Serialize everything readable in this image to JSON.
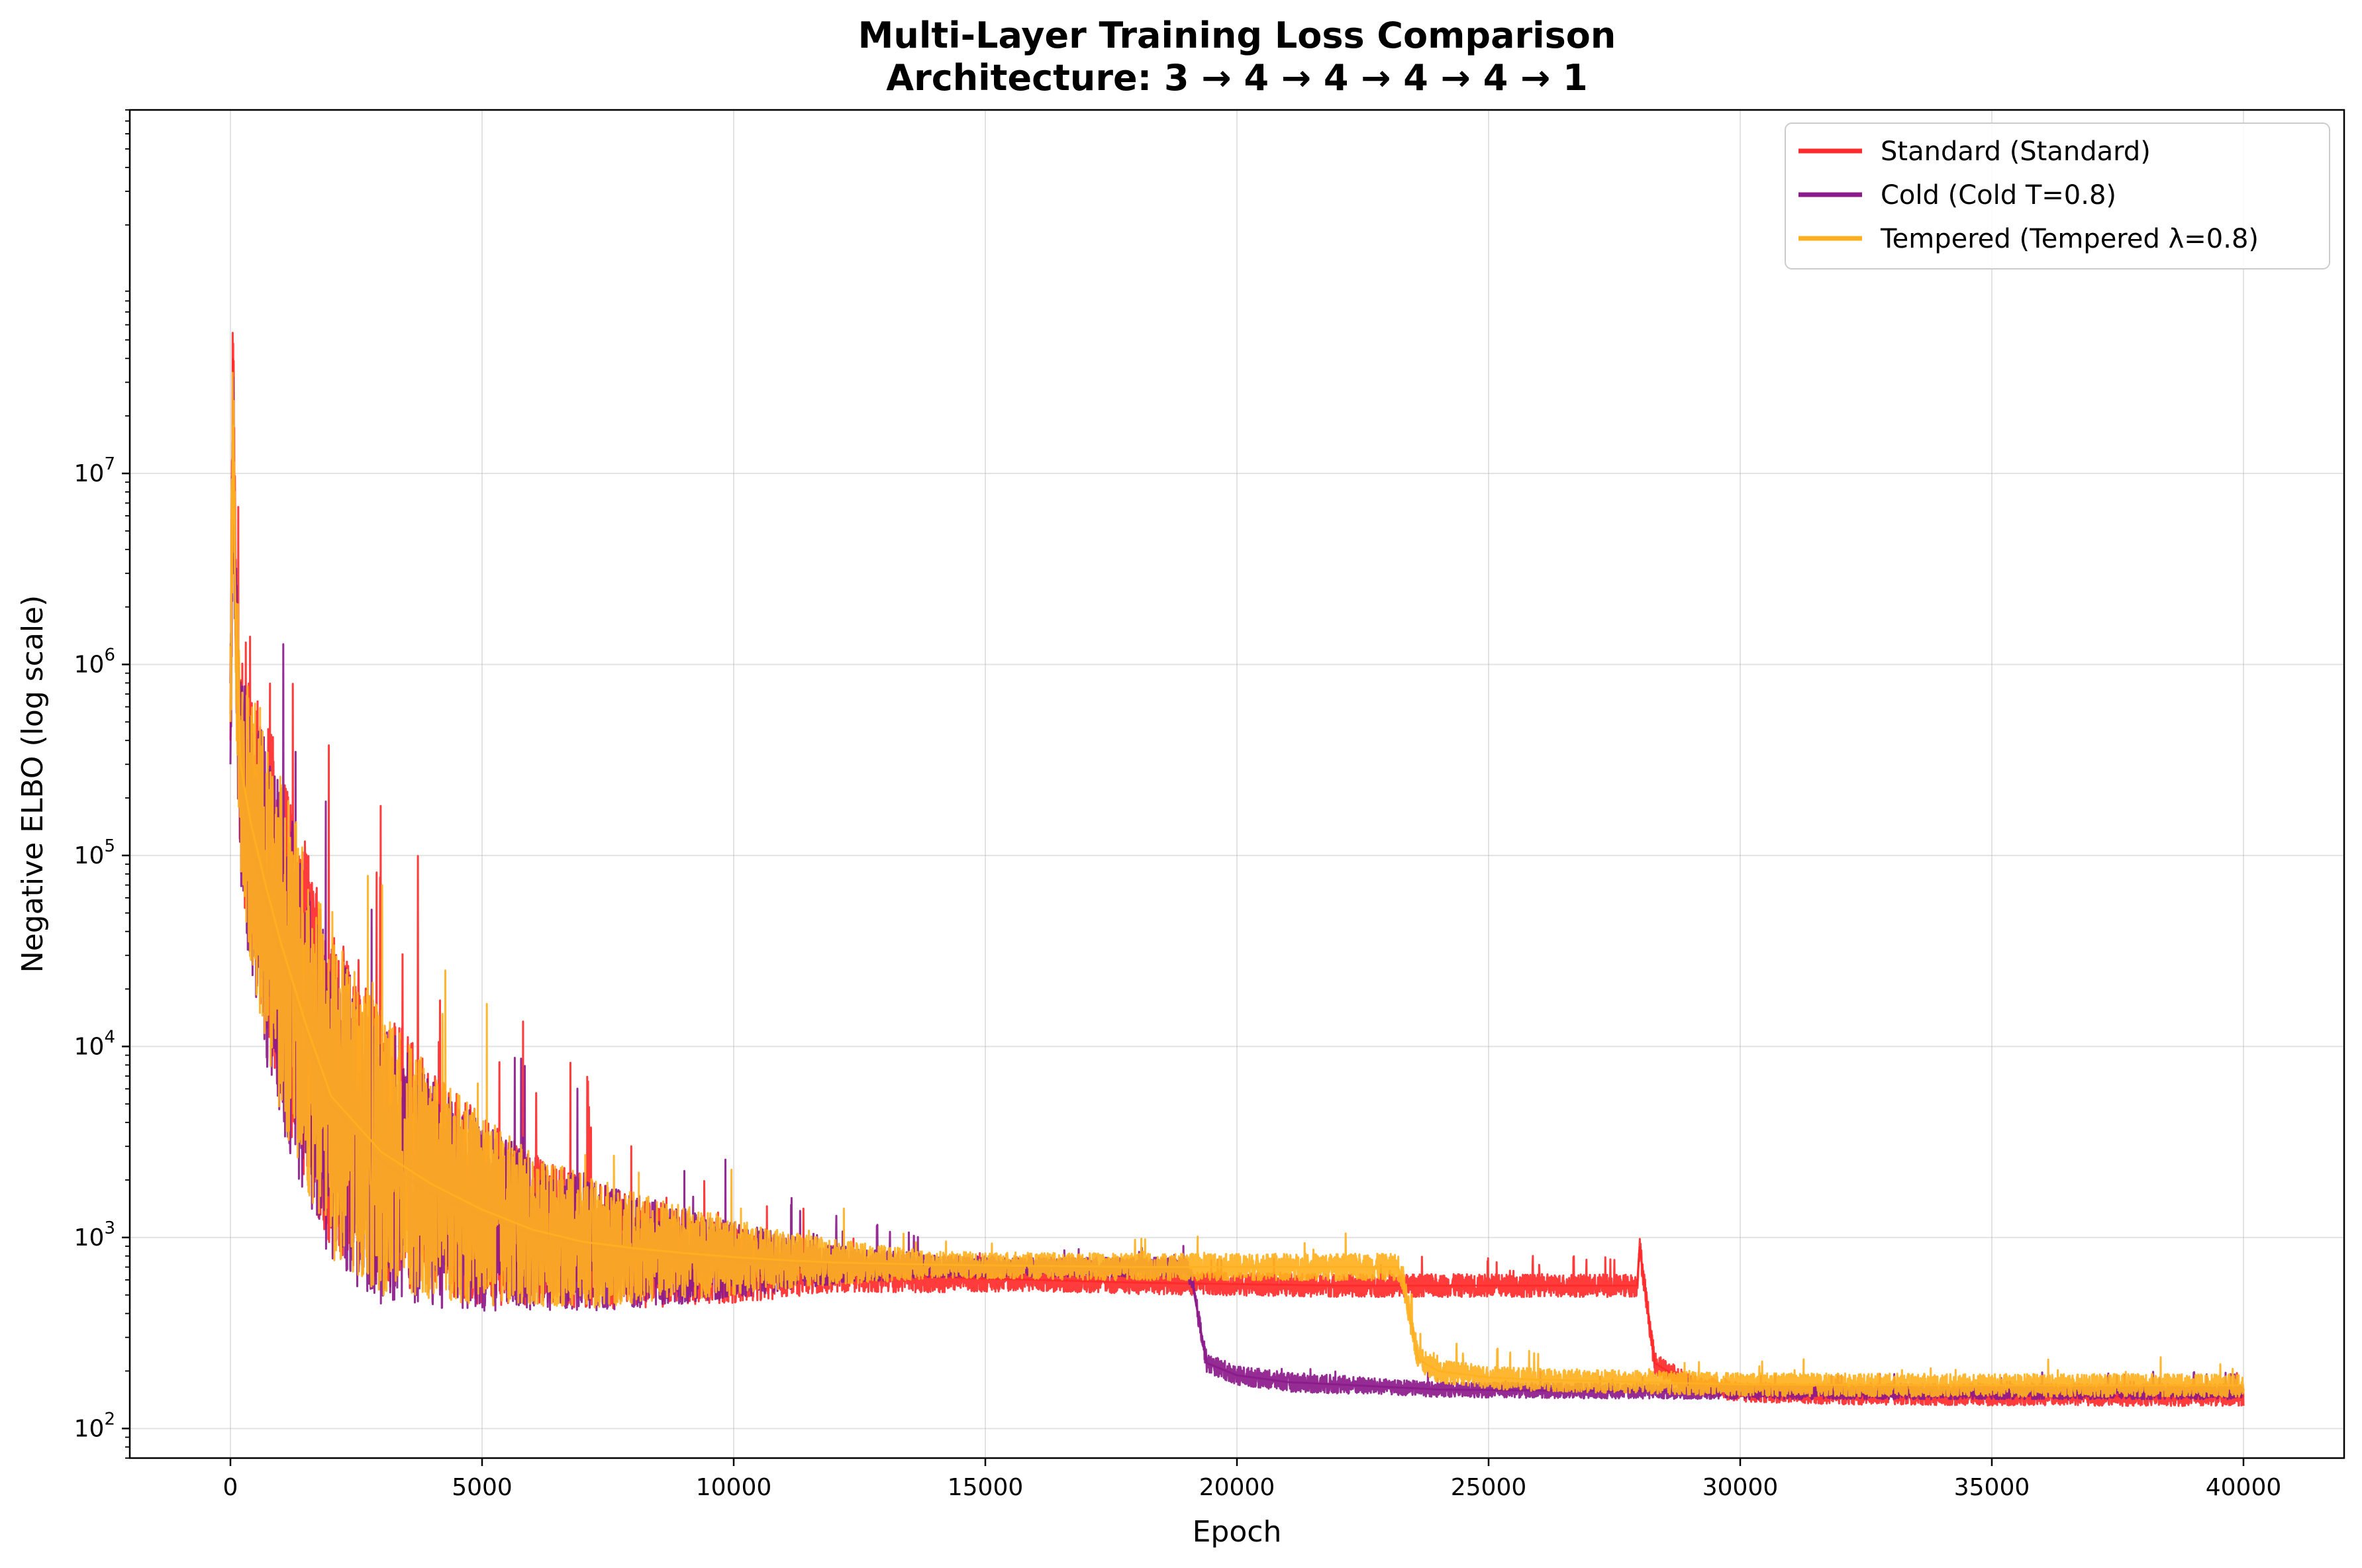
{
  "chart_data": {
    "type": "line",
    "title": "Multi-Layer Training Loss Comparison",
    "subtitle": "Architecture: 3 → 4 → 4 → 4 → 4 → 1",
    "xlabel": "Epoch",
    "ylabel": "Negative ELBO (log scale)",
    "xlim": [
      -2000,
      42000
    ],
    "ylim": [
      70,
      800000000
    ],
    "yscale": "log",
    "grid": true,
    "legend_position": "top-right",
    "x_ticks": [
      "0",
      "5000",
      "10000",
      "15000",
      "20000",
      "25000",
      "30000",
      "35000",
      "40000"
    ],
    "x_tick_values": [
      0,
      5000,
      10000,
      15000,
      20000,
      25000,
      30000,
      35000,
      40000
    ],
    "y_ticks": [
      {
        "base": "10",
        "exp": "2",
        "value": 100
      },
      {
        "base": "10",
        "exp": "3",
        "value": 1000
      },
      {
        "base": "10",
        "exp": "4",
        "value": 10000
      },
      {
        "base": "10",
        "exp": "5",
        "value": 100000
      },
      {
        "base": "10",
        "exp": "6",
        "value": 1000000
      },
      {
        "base": "10",
        "exp": "7",
        "value": 10000000
      }
    ],
    "series": [
      {
        "name": "Standard (Standard)",
        "color": "#ff2a2a",
        "x": [
          0,
          50,
          100,
          200,
          400,
          700,
          1000,
          1500,
          2000,
          3000,
          4000,
          5000,
          6000,
          7000,
          8000,
          9000,
          10000,
          11000,
          12000,
          14000,
          16000,
          18000,
          20000,
          22000,
          24000,
          26000,
          27950,
          28000,
          28300,
          29000,
          30000,
          32000,
          35000,
          38000,
          40000
        ],
        "y": [
          400000,
          40000000,
          2000000,
          300000,
          150000,
          80000,
          40000,
          15000,
          6000,
          3000,
          2000,
          1400,
          1100,
          950,
          850,
          780,
          720,
          680,
          650,
          620,
          600,
          580,
          570,
          560,
          560,
          560,
          560,
          900,
          220,
          170,
          155,
          150,
          148,
          147,
          147
        ],
        "band": [
          0.45,
          0.45,
          0.45,
          0.55,
          0.75,
          0.85,
          0.9,
          0.9,
          0.85,
          0.75,
          0.6,
          0.5,
          0.4,
          0.35,
          0.3,
          0.25,
          0.2,
          0.15,
          0.1,
          0.08,
          0.06,
          0.06,
          0.06,
          0.06,
          0.06,
          0.06,
          0.06,
          0.06,
          0.06,
          0.05,
          0.05,
          0.05,
          0.05,
          0.05,
          0.05
        ]
      },
      {
        "name": "Cold (Cold T=0.8)",
        "color": "#8b1a8b",
        "x": [
          0,
          50,
          100,
          200,
          400,
          700,
          1000,
          1500,
          2000,
          3000,
          4000,
          5000,
          6000,
          7000,
          8000,
          9000,
          10000,
          11000,
          12000,
          14000,
          16000,
          18000,
          19000,
          19100,
          19400,
          20000,
          21000,
          22000,
          23000,
          24000,
          26000,
          28000,
          30000,
          35000,
          40000
        ],
        "y": [
          300000,
          20000000,
          1500000,
          250000,
          120000,
          60000,
          30000,
          12000,
          5000,
          2500,
          1700,
          1300,
          1050,
          920,
          850,
          800,
          760,
          740,
          720,
          710,
          700,
          700,
          700,
          600,
          220,
          190,
          175,
          170,
          165,
          160,
          158,
          157,
          156,
          156,
          156
        ],
        "band": [
          0.45,
          0.45,
          0.45,
          0.55,
          0.75,
          0.85,
          0.9,
          0.9,
          0.85,
          0.75,
          0.6,
          0.5,
          0.4,
          0.35,
          0.3,
          0.25,
          0.2,
          0.15,
          0.1,
          0.06,
          0.05,
          0.05,
          0.05,
          0.05,
          0.05,
          0.05,
          0.05,
          0.05,
          0.04,
          0.04,
          0.04,
          0.04,
          0.04,
          0.04,
          0.04
        ]
      },
      {
        "name": "Tempered (Tempered λ=0.8)",
        "color": "#ffb020",
        "x": [
          0,
          50,
          100,
          200,
          400,
          700,
          1000,
          1500,
          2000,
          3000,
          4000,
          5000,
          6000,
          7000,
          8000,
          9000,
          10000,
          11000,
          12000,
          14000,
          16000,
          18000,
          20000,
          22000,
          23200,
          23300,
          23600,
          24000,
          25000,
          26000,
          28000,
          30000,
          35000,
          40000
        ],
        "y": [
          500000,
          18000000,
          1800000,
          300000,
          150000,
          70000,
          35000,
          13000,
          5500,
          2800,
          1900,
          1400,
          1100,
          950,
          880,
          830,
          790,
          760,
          740,
          720,
          710,
          700,
          700,
          700,
          700,
          600,
          230,
          200,
          185,
          180,
          175,
          170,
          168,
          168
        ],
        "band": [
          0.45,
          0.45,
          0.45,
          0.55,
          0.75,
          0.85,
          0.9,
          0.9,
          0.85,
          0.75,
          0.6,
          0.5,
          0.4,
          0.35,
          0.3,
          0.25,
          0.2,
          0.15,
          0.12,
          0.07,
          0.07,
          0.07,
          0.07,
          0.07,
          0.07,
          0.07,
          0.07,
          0.06,
          0.06,
          0.06,
          0.06,
          0.06,
          0.06,
          0.06
        ]
      }
    ]
  }
}
